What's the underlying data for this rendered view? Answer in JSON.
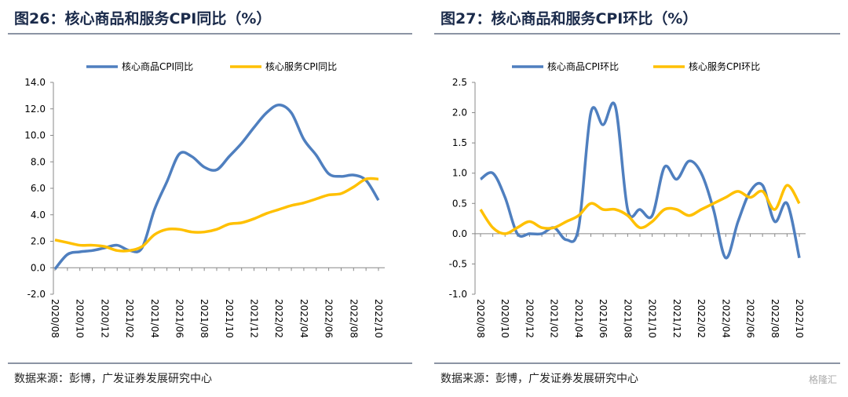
{
  "chart_data": [
    {
      "type": "line",
      "title": "图26：核心商品和服务CPI同比（%）",
      "source": "数据来源：彭博，广发证券发展研究中心",
      "categories": [
        "2020/08",
        null,
        "2020/10",
        null,
        "2020/12",
        null,
        "2021/02",
        null,
        "2021/04",
        null,
        "2021/06",
        null,
        "2021/08",
        null,
        "2021/10",
        null,
        "2021/12",
        null,
        "2022/02",
        null,
        "2022/04",
        null,
        "2022/06",
        null,
        "2022/08",
        null,
        "2022/10"
      ],
      "series": [
        {
          "name": "核心商品CPI同比",
          "color": "#4f7fbf",
          "values": [
            -0.1,
            1.0,
            1.2,
            1.3,
            1.5,
            1.7,
            1.3,
            1.5,
            4.4,
            6.5,
            8.6,
            8.4,
            7.6,
            7.4,
            8.4,
            9.4,
            10.6,
            11.7,
            12.3,
            11.7,
            9.7,
            8.5,
            7.1,
            6.9,
            7.0,
            6.6,
            5.1
          ]
        },
        {
          "name": "核心服务CPI同比",
          "color": "#ffc000",
          "values": [
            2.1,
            1.9,
            1.7,
            1.7,
            1.6,
            1.3,
            1.3,
            1.6,
            2.5,
            2.9,
            2.9,
            2.7,
            2.7,
            2.9,
            3.3,
            3.4,
            3.7,
            4.1,
            4.4,
            4.7,
            4.9,
            5.2,
            5.5,
            5.6,
            6.1,
            6.7,
            6.7
          ]
        }
      ],
      "ylim": [
        -2,
        14
      ],
      "yticks": [
        {
          "value": -2,
          "label": "-2.0"
        },
        {
          "value": 0,
          "label": "0.0"
        },
        {
          "value": 2,
          "label": "2.0"
        },
        {
          "value": 4,
          "label": "4.0"
        },
        {
          "value": 6,
          "label": "6.0"
        },
        {
          "value": 8,
          "label": "8.0"
        },
        {
          "value": 10,
          "label": "10.0"
        },
        {
          "value": 12,
          "label": "12.0"
        },
        {
          "value": 14,
          "label": "14.0"
        }
      ],
      "legend": "top"
    },
    {
      "type": "line",
      "title": "图27：核心商品和服务CPI环比（%）",
      "source": "数据来源：彭博，广发证券发展研究中心",
      "categories": [
        "2020/08",
        null,
        "2020/10",
        null,
        "2020/12",
        null,
        "2021/02",
        null,
        "2021/04",
        null,
        "2021/06",
        null,
        "2021/08",
        null,
        "2021/10",
        null,
        "2021/12",
        null,
        "2022/02",
        null,
        "2022/04",
        null,
        "2022/06",
        null,
        "2022/08",
        null,
        "2022/10"
      ],
      "series": [
        {
          "name": "核心商品CPI环比",
          "color": "#4f7fbf",
          "values": [
            0.9,
            1.0,
            0.6,
            0.0,
            0.0,
            0.0,
            0.1,
            -0.1,
            0.1,
            2.0,
            1.8,
            2.1,
            0.4,
            0.4,
            0.3,
            1.1,
            0.9,
            1.2,
            1.0,
            0.4,
            -0.4,
            0.2,
            0.7,
            0.8,
            0.2,
            0.5,
            -0.4
          ]
        },
        {
          "name": "核心服务CPI环比",
          "color": "#ffc000",
          "values": [
            0.4,
            0.1,
            0.0,
            0.1,
            0.2,
            0.1,
            0.1,
            0.2,
            0.3,
            0.5,
            0.4,
            0.4,
            0.3,
            0.1,
            0.2,
            0.4,
            0.4,
            0.3,
            0.4,
            0.5,
            0.6,
            0.7,
            0.6,
            0.7,
            0.4,
            0.8,
            0.5
          ]
        }
      ],
      "ylim": [
        -1,
        2.5
      ],
      "yticks": [
        {
          "value": -1,
          "label": "-1.0"
        },
        -0.5,
        {
          "value": 0,
          "label": "0.0"
        },
        0.5,
        {
          "value": 1,
          "label": "1.0"
        },
        1.5,
        {
          "value": 2,
          "label": "2.0"
        },
        2.5
      ],
      "legend": "top"
    }
  ],
  "watermark": "格隆汇"
}
